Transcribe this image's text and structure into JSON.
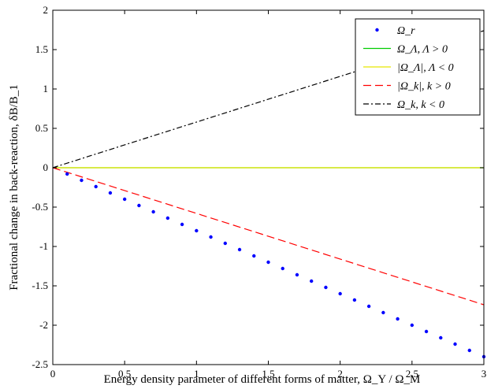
{
  "chart_data": {
    "type": "line",
    "xlabel": "Energy density parameter of different forms of matter, Ω_Y / Ω_M",
    "ylabel": "Fractional change in back-reaction, δB/B_1",
    "xlim": [
      0,
      3
    ],
    "ylim": [
      -2.5,
      2
    ],
    "xticks": [
      0,
      0.5,
      1,
      1.5,
      2,
      2.5,
      3
    ],
    "xtick_labels": [
      "0",
      "0.5",
      "1",
      "1.5",
      "2",
      "2.5",
      "3"
    ],
    "yticks": [
      2,
      1.5,
      1,
      0.5,
      0,
      -0.5,
      -1,
      -1.5,
      -2,
      -2.5
    ],
    "ytick_labels": [
      "2",
      "1.5",
      "1",
      "0.5",
      "0",
      "-0.5",
      "-1",
      "-1.5",
      "-2",
      "-2.5"
    ],
    "grid": false,
    "legend_position": "top-right",
    "series": [
      {
        "name": "Ω_r",
        "style": "dotted-markers",
        "color": "#0000ff",
        "x": [
          0,
          3
        ],
        "y": [
          0,
          -2.4
        ]
      },
      {
        "name": "Ω_Λ, Λ > 0",
        "style": "solid",
        "color": "#00cc00",
        "x": [
          0,
          3
        ],
        "y": [
          0,
          0
        ]
      },
      {
        "name": "|Ω_Λ|, Λ < 0",
        "style": "solid",
        "color": "#e6e600",
        "x": [
          0,
          3
        ],
        "y": [
          0,
          0
        ]
      },
      {
        "name": "|Ω_k|, k > 0",
        "style": "dashed",
        "color": "#ff0000",
        "x": [
          0,
          3
        ],
        "y": [
          0,
          -1.74
        ]
      },
      {
        "name": "Ω_k, k < 0",
        "style": "dash-dot",
        "color": "#000000",
        "x": [
          0,
          3
        ],
        "y": [
          0,
          1.74
        ]
      }
    ]
  }
}
